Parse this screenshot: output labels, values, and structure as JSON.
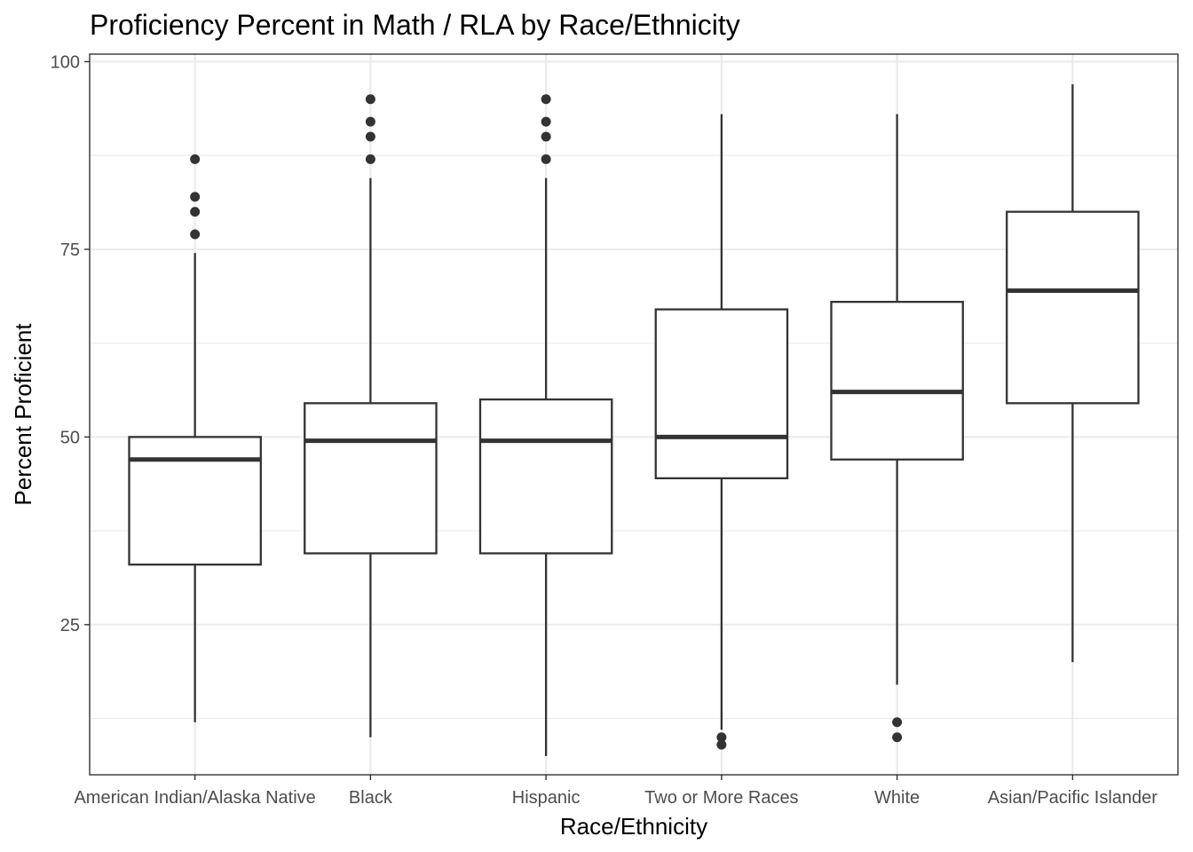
{
  "chart_data": {
    "type": "boxplot",
    "title": "Proficiency Percent in Math / RLA by Race/Ethnicity",
    "xlabel": "Race/Ethnicity",
    "ylabel": "Percent Proficient",
    "ylim": [
      5,
      101
    ],
    "yticks": [
      25,
      50,
      75,
      100
    ],
    "grid": true,
    "categories": [
      "American Indian/Alaska Native",
      "Black",
      "Hispanic",
      "Two or More Races",
      "White",
      "Asian/Pacific Islander"
    ],
    "boxes": [
      {
        "category": "American Indian/Alaska Native",
        "whisker_low": 12,
        "q1": 33,
        "median": 47,
        "q3": 50,
        "whisker_high": 74.5,
        "outliers": [
          77,
          80,
          82,
          87
        ]
      },
      {
        "category": "Black",
        "whisker_low": 10,
        "q1": 34.5,
        "median": 49.5,
        "q3": 54.5,
        "whisker_high": 84.5,
        "outliers": [
          87,
          90,
          92,
          95
        ]
      },
      {
        "category": "Hispanic",
        "whisker_low": 7.5,
        "q1": 34.5,
        "median": 49.5,
        "q3": 55,
        "whisker_high": 84.5,
        "outliers": [
          87,
          90,
          92,
          95
        ]
      },
      {
        "category": "Two or More Races",
        "whisker_low": 11,
        "q1": 44.5,
        "median": 50,
        "q3": 67,
        "whisker_high": 93,
        "outliers": [
          9,
          10
        ]
      },
      {
        "category": "White",
        "whisker_low": 17,
        "q1": 47,
        "median": 56,
        "q3": 68,
        "whisker_high": 93,
        "outliers": [
          10,
          12
        ]
      },
      {
        "category": "Asian/Pacific Islander",
        "whisker_low": 20,
        "q1": 54.5,
        "median": 69.5,
        "q3": 80,
        "whisker_high": 97,
        "outliers": []
      }
    ],
    "colors": {
      "box_fill": "#ffffff",
      "stroke": "#333333",
      "grid": "#ebebeb",
      "tick_text": "#4d4d4d"
    }
  }
}
